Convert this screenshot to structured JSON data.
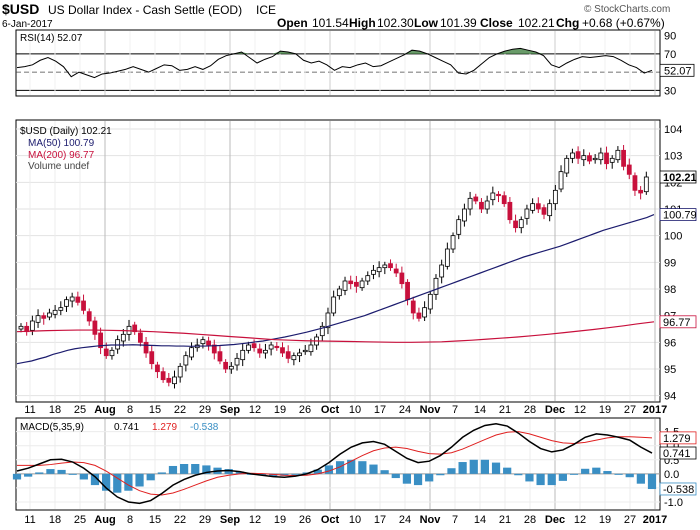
{
  "header": {
    "symbol": "$USD",
    "name": "US Dollar Index - Cash Settle (EOD)",
    "exchange": "ICE",
    "date": "6-Jan-2017",
    "open_label": "Open",
    "open_value": "101.54",
    "high_label": "High",
    "high_value": "102.30",
    "low_label": "Low",
    "low_value": "101.39",
    "close_label": "Close",
    "close_value": "102.21",
    "chg_label": "Chg",
    "chg_value": "+0.68 (+0.67%)",
    "copyright": "© StockCharts.com"
  },
  "colors": {
    "up_candle": "#ffffff",
    "down_candle": "#c8103c",
    "ma50": "#1c1c6e",
    "ma200": "#c8103c",
    "macd_line": "#000000",
    "signal_line": "#e02020",
    "histogram": "#3a8fc4",
    "rsi_line": "#000000",
    "rsi_fill": "#4f8a4f"
  },
  "chart_data": [
    {
      "type": "line",
      "title": "RSI(14) 52.07",
      "legend": "RSI(14) 52.07",
      "ylim": [
        25,
        95
      ],
      "y_ticks": [
        "90",
        "70",
        "50",
        "30"
      ],
      "current_label": "52.07",
      "levels": [
        70,
        30
      ],
      "points": [
        [
          0,
          55
        ],
        [
          4,
          56
        ],
        [
          8,
          58
        ],
        [
          12,
          63
        ],
        [
          16,
          66
        ],
        [
          20,
          62
        ],
        [
          24,
          56
        ],
        [
          28,
          45
        ],
        [
          32,
          50
        ],
        [
          36,
          47
        ],
        [
          40,
          44
        ],
        [
          44,
          48
        ],
        [
          48,
          49
        ],
        [
          52,
          51
        ],
        [
          56,
          53
        ],
        [
          60,
          56
        ],
        [
          64,
          53
        ],
        [
          68,
          50
        ],
        [
          72,
          54
        ],
        [
          76,
          58
        ],
        [
          80,
          57
        ],
        [
          84,
          52
        ],
        [
          88,
          53
        ],
        [
          92,
          56
        ],
        [
          96,
          53
        ],
        [
          100,
          57
        ],
        [
          104,
          64
        ],
        [
          108,
          68
        ],
        [
          112,
          70
        ],
        [
          116,
          72
        ],
        [
          120,
          66
        ],
        [
          124,
          60
        ],
        [
          128,
          64
        ],
        [
          132,
          67
        ],
        [
          136,
          73
        ],
        [
          140,
          72
        ],
        [
          144,
          70
        ],
        [
          148,
          63
        ],
        [
          152,
          60
        ],
        [
          156,
          62
        ],
        [
          160,
          58
        ],
        [
          164,
          52
        ],
        [
          168,
          56
        ],
        [
          172,
          55
        ],
        [
          176,
          58
        ],
        [
          180,
          60
        ],
        [
          184,
          56
        ],
        [
          188,
          57
        ],
        [
          192,
          61
        ],
        [
          196,
          65
        ],
        [
          200,
          69
        ],
        [
          204,
          74
        ],
        [
          208,
          73
        ],
        [
          212,
          70
        ],
        [
          216,
          66
        ],
        [
          220,
          62
        ],
        [
          224,
          58
        ],
        [
          228,
          49
        ],
        [
          232,
          48
        ],
        [
          236,
          52
        ],
        [
          240,
          59
        ],
        [
          244,
          66
        ],
        [
          248,
          70
        ],
        [
          252,
          73
        ],
        [
          256,
          75
        ],
        [
          260,
          76
        ],
        [
          264,
          74
        ],
        [
          268,
          72
        ],
        [
          272,
          68
        ],
        [
          276,
          58
        ],
        [
          280,
          55
        ],
        [
          284,
          60
        ],
        [
          288,
          64
        ],
        [
          292,
          67
        ],
        [
          296,
          66
        ],
        [
          300,
          67
        ],
        [
          304,
          68
        ],
        [
          308,
          67
        ],
        [
          312,
          63
        ],
        [
          316,
          58
        ],
        [
          320,
          55
        ],
        [
          324,
          49
        ],
        [
          328,
          52
        ]
      ]
    },
    {
      "type": "line",
      "title": "$USD (Daily) 102.21",
      "legend": [
        "$USD (Daily) 102.21",
        "MA(50) 100.79",
        "MA(200) 96.77",
        "Volume undef"
      ],
      "ylim": [
        93.8,
        104.3
      ],
      "y_ticks": [
        "104",
        "103",
        "102",
        "101",
        "100",
        "99",
        "98",
        "97",
        "96",
        "95",
        "94"
      ],
      "last_labels": [
        "102.21",
        "100.79",
        "96.77"
      ],
      "x_ticks": [
        "11",
        "18",
        "25",
        "Aug",
        "8",
        "15",
        "22",
        "29",
        "Sep",
        "12",
        "19",
        "26",
        "Oct",
        "10",
        "17",
        "24",
        "Nov",
        "7",
        "14",
        "21",
        "28",
        "Dec",
        "12",
        "19",
        "27",
        "2017"
      ],
      "series": [
        {
          "name": "$USD (Daily)",
          "values": [
            96.6,
            96.4,
            96.8,
            97.0,
            96.9,
            97.1,
            97.2,
            97.3,
            97.6,
            97.7,
            97.5,
            97.2,
            96.8,
            96.3,
            95.8,
            95.5,
            95.7,
            96.1,
            96.3,
            96.6,
            96.4,
            96.0,
            95.6,
            95.2,
            94.9,
            94.6,
            94.5,
            94.7,
            95.1,
            95.5,
            95.8,
            95.9,
            96.1,
            95.9,
            95.6,
            95.3,
            95.0,
            95.1,
            95.4,
            95.7,
            95.9,
            95.8,
            95.6,
            95.7,
            95.9,
            95.8,
            95.6,
            95.4,
            95.5,
            95.6,
            95.7,
            95.9,
            96.2,
            96.6,
            97.1,
            97.7,
            98.0,
            98.3,
            98.2,
            98.1,
            98.3,
            98.5,
            98.7,
            98.8,
            98.9,
            98.8,
            98.6,
            98.2,
            97.6,
            97.1,
            96.9,
            97.3,
            97.8,
            98.4,
            98.9,
            99.5,
            100.0,
            100.6,
            101.0,
            101.4,
            101.3,
            101.0,
            101.3,
            101.6,
            101.5,
            101.2,
            100.6,
            100.3,
            100.6,
            101.0,
            101.2,
            101.0,
            100.8,
            101.2,
            101.7,
            102.4,
            102.9,
            103.1,
            102.9,
            103.0,
            102.8,
            102.9,
            103.1,
            102.7,
            102.9,
            103.2,
            102.6,
            102.3,
            101.7,
            101.6,
            102.2
          ]
        },
        {
          "name": "MA(50)",
          "values": [
            95.2,
            95.25,
            95.3,
            95.38,
            95.45,
            95.55,
            95.62,
            95.7,
            95.76,
            95.8,
            95.83,
            95.86,
            95.88,
            95.9,
            95.9,
            95.9,
            95.91,
            95.9,
            95.89,
            95.88,
            95.87,
            95.87,
            95.86,
            95.86,
            95.85,
            95.86,
            95.86,
            95.87,
            95.88,
            95.9,
            95.92,
            95.95,
            95.98,
            96.02,
            96.05,
            96.1,
            96.15,
            96.2,
            96.26,
            96.32,
            96.38,
            96.45,
            96.52,
            96.6,
            96.68,
            96.76,
            96.84,
            96.92,
            97.0,
            97.1,
            97.2,
            97.3,
            97.4,
            97.5,
            97.6,
            97.7,
            97.8,
            97.9,
            98.0,
            98.1,
            98.2,
            98.3,
            98.4,
            98.5,
            98.6,
            98.7,
            98.8,
            98.9,
            99.0,
            99.1,
            99.2,
            99.28,
            99.36,
            99.44,
            99.52,
            99.6,
            99.7,
            99.8,
            99.9,
            100.0,
            100.1,
            100.2,
            100.28,
            100.36,
            100.44,
            100.52,
            100.6,
            100.68,
            100.79
          ]
        },
        {
          "name": "MA(200)",
          "values": [
            96.4,
            96.42,
            96.44,
            96.45,
            96.46,
            96.46,
            96.45,
            96.44,
            96.42,
            96.4,
            96.37,
            96.34,
            96.3,
            96.26,
            96.22,
            96.18,
            96.14,
            96.1,
            96.08,
            96.06,
            96.05,
            96.04,
            96.03,
            96.02,
            96.01,
            96.0,
            96.0,
            96.01,
            96.02,
            96.05,
            96.08,
            96.12,
            96.16,
            96.2,
            96.25,
            96.3,
            96.36,
            96.42,
            96.48,
            96.55,
            96.62,
            96.7,
            96.77
          ]
        }
      ]
    },
    {
      "type": "line",
      "title": "MACD(5,35,9) 0.741, 1.279, -0.538",
      "legend": {
        "name": "MACD(5,35,9)",
        "v1": "0.741",
        "v2": "1.279",
        "v3": "-0.538"
      },
      "ylim": [
        -1.25,
        1.95
      ],
      "y_ticks": [
        "1.5",
        "1.0",
        "0.5",
        "0.0",
        "-0.5",
        "-1.0"
      ],
      "last_labels": [
        "1.279",
        "0.741",
        "-0.538"
      ],
      "x_ticks": [
        "11",
        "18",
        "25",
        "Aug",
        "8",
        "15",
        "22",
        "29",
        "Sep",
        "12",
        "19",
        "26",
        "Oct",
        "10",
        "17",
        "24",
        "Nov",
        "7",
        "14",
        "21",
        "28",
        "Dec",
        "12",
        "19",
        "27",
        "2017"
      ],
      "series": [
        {
          "name": "MACD",
          "values": [
            0.1,
            0.2,
            0.35,
            0.5,
            0.52,
            0.42,
            0.2,
            -0.1,
            -0.5,
            -0.82,
            -1.0,
            -1.05,
            -0.95,
            -0.7,
            -0.4,
            -0.2,
            -0.05,
            0.05,
            0.1,
            0.12,
            0.08,
            0.0,
            -0.05,
            -0.1,
            -0.12,
            -0.08,
            0.0,
            0.15,
            0.4,
            0.7,
            0.95,
            1.1,
            1.15,
            1.05,
            0.8,
            0.55,
            0.4,
            0.45,
            0.65,
            0.95,
            1.3,
            1.55,
            1.72,
            1.78,
            1.7,
            1.45,
            1.15,
            0.9,
            0.78,
            0.85,
            1.05,
            1.3,
            1.42,
            1.38,
            1.3,
            1.2,
            0.95,
            0.74
          ]
        },
        {
          "name": "Signal",
          "values": [
            0.3,
            0.3,
            0.3,
            0.33,
            0.38,
            0.42,
            0.4,
            0.3,
            0.1,
            -0.15,
            -0.4,
            -0.6,
            -0.72,
            -0.75,
            -0.68,
            -0.55,
            -0.4,
            -0.25,
            -0.12,
            -0.05,
            0.0,
            0.02,
            0.01,
            -0.02,
            -0.05,
            -0.06,
            -0.05,
            0.0,
            0.1,
            0.25,
            0.45,
            0.65,
            0.82,
            0.92,
            0.95,
            0.9,
            0.8,
            0.72,
            0.7,
            0.75,
            0.88,
            1.05,
            1.22,
            1.38,
            1.48,
            1.5,
            1.42,
            1.3,
            1.18,
            1.1,
            1.08,
            1.12,
            1.2,
            1.28,
            1.32,
            1.32,
            1.3,
            1.28
          ]
        }
      ]
    }
  ]
}
